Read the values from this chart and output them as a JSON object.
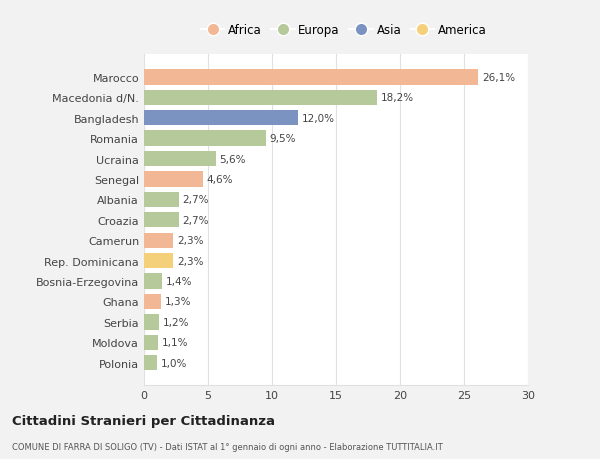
{
  "categories": [
    "Marocco",
    "Macedonia d/N.",
    "Bangladesh",
    "Romania",
    "Ucraina",
    "Senegal",
    "Albania",
    "Croazia",
    "Camerun",
    "Rep. Dominicana",
    "Bosnia-Erzegovina",
    "Ghana",
    "Serbia",
    "Moldova",
    "Polonia"
  ],
  "values": [
    26.1,
    18.2,
    12.0,
    9.5,
    5.6,
    4.6,
    2.7,
    2.7,
    2.3,
    2.3,
    1.4,
    1.3,
    1.2,
    1.1,
    1.0
  ],
  "labels": [
    "26,1%",
    "18,2%",
    "12,0%",
    "9,5%",
    "5,6%",
    "4,6%",
    "2,7%",
    "2,7%",
    "2,3%",
    "2,3%",
    "1,4%",
    "1,3%",
    "1,2%",
    "1,1%",
    "1,0%"
  ],
  "continents": [
    "Africa",
    "Europa",
    "Asia",
    "Europa",
    "Europa",
    "Africa",
    "Europa",
    "Europa",
    "Africa",
    "America",
    "Europa",
    "Africa",
    "Europa",
    "Europa",
    "Europa"
  ],
  "colors": {
    "Africa": "#F2B896",
    "Europa": "#B5C99A",
    "Asia": "#7B93C0",
    "America": "#F5D07A"
  },
  "xlim": [
    0,
    30
  ],
  "xticks": [
    0,
    5,
    10,
    15,
    20,
    25,
    30
  ],
  "title": "Cittadini Stranieri per Cittadinanza",
  "subtitle": "COMUNE DI FARRA DI SOLIGO (TV) - Dati ISTAT al 1° gennaio di ogni anno - Elaborazione TUTTITALIA.IT",
  "background_color": "#f2f2f2",
  "plot_background": "#ffffff",
  "grid_color": "#e0e0e0",
  "legend_order": [
    "Africa",
    "Europa",
    "Asia",
    "America"
  ]
}
